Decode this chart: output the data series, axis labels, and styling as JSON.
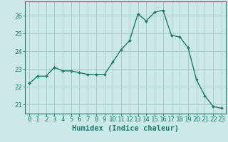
{
  "x": [
    0,
    1,
    2,
    3,
    4,
    5,
    6,
    7,
    8,
    9,
    10,
    11,
    12,
    13,
    14,
    15,
    16,
    17,
    18,
    19,
    20,
    21,
    22,
    23
  ],
  "y": [
    22.2,
    22.6,
    22.6,
    23.1,
    22.9,
    22.9,
    22.8,
    22.7,
    22.7,
    22.7,
    23.4,
    24.1,
    24.6,
    26.1,
    25.7,
    26.2,
    26.3,
    24.9,
    24.8,
    24.2,
    22.4,
    21.5,
    20.9,
    20.8
  ],
  "line_color": "#1a7a6e",
  "marker_color": "#1a7a6e",
  "bg_color": "#cce8e8",
  "grid_color": "#aacccc",
  "xlabel": "Humidex (Indice chaleur)",
  "ylim": [
    20.5,
    26.8
  ],
  "xlim": [
    -0.5,
    23.5
  ],
  "yticks": [
    21,
    22,
    23,
    24,
    25,
    26
  ],
  "xticks": [
    0,
    1,
    2,
    3,
    4,
    5,
    6,
    7,
    8,
    9,
    10,
    11,
    12,
    13,
    14,
    15,
    16,
    17,
    18,
    19,
    20,
    21,
    22,
    23
  ],
  "xtick_labels": [
    "0",
    "1",
    "2",
    "3",
    "4",
    "5",
    "6",
    "7",
    "8",
    "9",
    "10",
    "11",
    "12",
    "13",
    "14",
    "15",
    "16",
    "17",
    "18",
    "19",
    "20",
    "21",
    "22",
    "23"
  ],
  "tick_font_size": 6.5,
  "label_font_size": 7.5
}
